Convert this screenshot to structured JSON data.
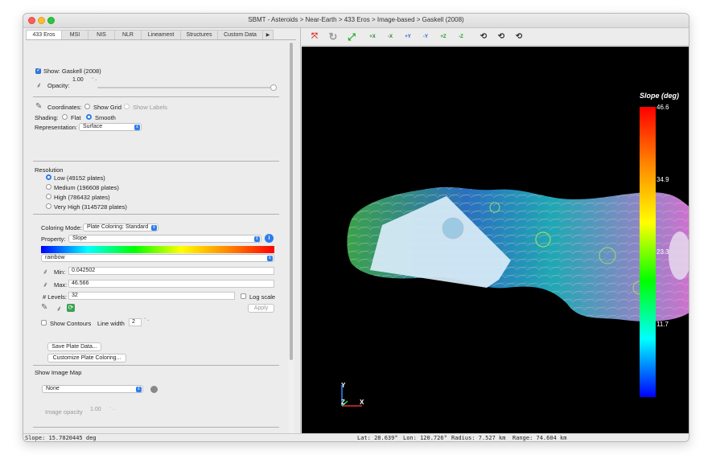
{
  "window": {
    "title": "SBMT - Asteroids > Near-Earth > 433 Eros > Image-based > Gaskell (2008)"
  },
  "tabs": [
    "433 Eros",
    "MSI",
    "NIS",
    "NLR",
    "Lineament",
    "Structures",
    "Custom Data"
  ],
  "tabs_more_icon": "triangle-right-icon",
  "panel": {
    "show_label": "Show: Gaskell (2008)",
    "opacity_label": "Opacity:",
    "opacity_value": "1.00",
    "opacity_fraction": 1.0,
    "coordinates_label": "Coordinates:",
    "show_grid_label": "Show Grid",
    "show_labels_label": "Show Labels",
    "shading_label": "Shading:",
    "flat_label": "Flat",
    "smooth_label": "Smooth",
    "representation_label": "Representation:",
    "representation_value": "Surface",
    "resolution_label": "Resolution",
    "resolutions": [
      "Low (49152 plates)",
      "Medium (196608 plates)",
      "High (786432 plates)",
      "Very High (3145728 plates)"
    ],
    "resolution_selected": 0,
    "coloring_mode_label": "Coloring Mode:",
    "coloring_mode_value": "Plate Coloring: Standard",
    "property_label": "Property:",
    "property_value": "Slope",
    "colormap_value": "rainbow",
    "min_label": "Min:",
    "min_value": "0.042502",
    "max_label": "Max:",
    "max_value": "46.566",
    "levels_label": "# Levels:",
    "levels_value": "32",
    "log_scale_label": "Log scale",
    "apply_label": "Apply",
    "show_contours_label": "Show Contours",
    "line_width_label": "Line width",
    "line_width_value": "2",
    "save_plate_label": "Save Plate Data...",
    "customize_label": "Customize Plate Coloring...",
    "show_image_map_label": "Show Image Map",
    "image_map_value": "None",
    "image_opacity_label": "Image opacity",
    "image_opacity_value": "1.00"
  },
  "toolbar": {
    "buttons": [
      "pick-icon",
      "reset-view-icon",
      "scale-view-icon",
      "view-plus-x",
      "view-minus-x",
      "view-plus-y",
      "view-minus-y",
      "view-plus-z",
      "view-minus-z",
      "rotate-x-icon",
      "rotate-y-icon",
      "rotate-z-icon"
    ],
    "labels": [
      "+X",
      "-X",
      "+Y",
      "-Y",
      "+Z",
      "-Z"
    ]
  },
  "colorbar": {
    "title": "Slope (deg)",
    "ticks": [
      "46.6",
      "34.9",
      "23.3",
      "11.7"
    ],
    "colors": [
      "#ff0000",
      "#ff8800",
      "#ffff00",
      "#00ff00",
      "#00ffff",
      "#0000ff"
    ]
  },
  "axes": {
    "x": "X",
    "y": "Y",
    "z": "Z"
  },
  "status": {
    "slope": "Slope: 15.7020445 deg",
    "lat": "Lat: 28.639°",
    "lon": "Lon: 120.726°",
    "radius": "Radius:  7.527 km",
    "range": "Range:  74.604 km"
  }
}
